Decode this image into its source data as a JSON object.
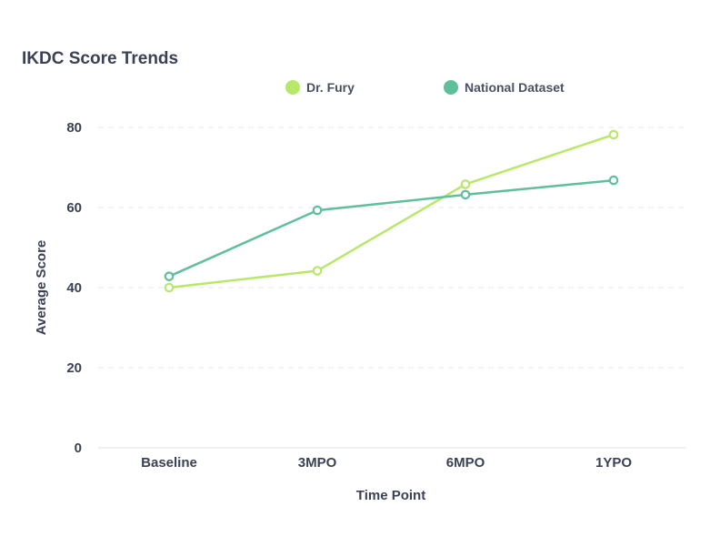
{
  "chart_data": {
    "type": "line",
    "title": "IKDC Score Trends",
    "xlabel": "Time Point",
    "ylabel": "Average Score",
    "categories": [
      "Baseline",
      "3MPO",
      "6MPO",
      "1YPO"
    ],
    "ylim": [
      0,
      80
    ],
    "yticks": [
      0,
      20,
      40,
      60,
      80
    ],
    "grid": true,
    "legend_position": "top",
    "series": [
      {
        "name": "Dr. Fury",
        "values": [
          40,
          44.2,
          65.8,
          78.2
        ],
        "color": "#b8e86a"
      },
      {
        "name": "National Dataset",
        "values": [
          42.8,
          59.3,
          63.2,
          66.8
        ],
        "color": "#5fbf9b"
      }
    ]
  }
}
